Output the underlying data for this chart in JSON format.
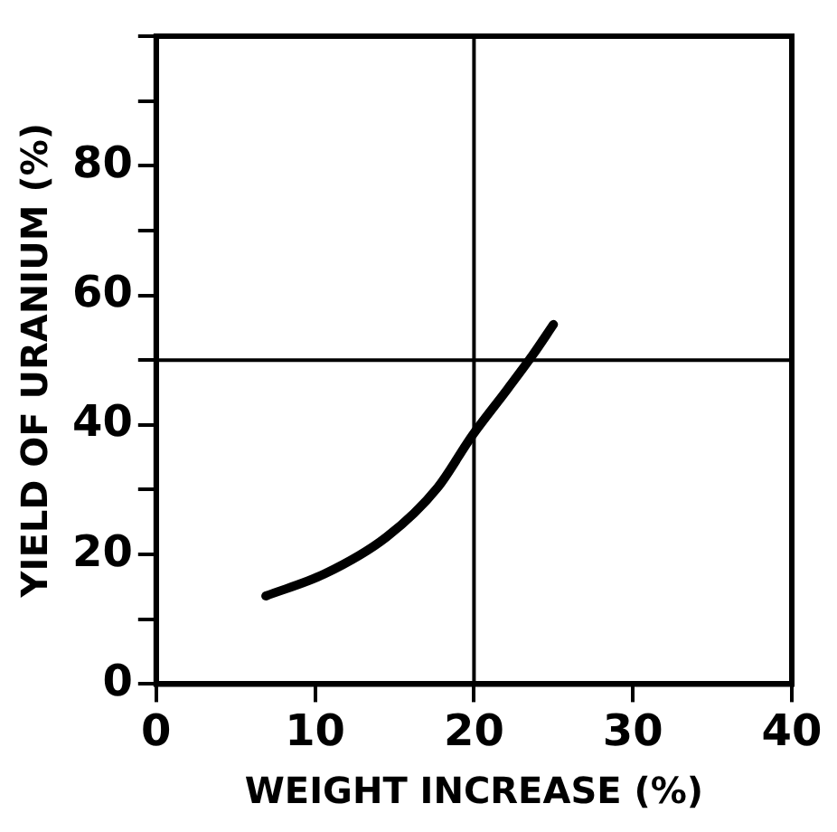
{
  "chart_data": {
    "type": "line",
    "xlabel": "WEIGHT INCREASE (%)",
    "ylabel": "YIELD OF URANIUM (%)",
    "series": [
      {
        "color": "#000000",
        "x": [
          6.9,
          10.6,
          14.5,
          17.7,
          19.9,
          22.1,
          23.7,
          25
        ],
        "values": [
          13.6,
          17,
          22.7,
          30.3,
          38.4,
          45.5,
          50.8,
          55.5
        ]
      }
    ],
    "xlim": [
      0,
      40
    ],
    "xticks": [
      0,
      10,
      20,
      30,
      40
    ],
    "ylim": [
      0,
      100
    ],
    "yticks": [
      0,
      {
        "value": 10,
        "label": null
      },
      20,
      {
        "value": 30,
        "label": null
      },
      40,
      {
        "value": 50,
        "label": null
      },
      60,
      {
        "value": 70,
        "label": null
      },
      80,
      {
        "value": 90,
        "label": null
      },
      {
        "value": 100,
        "label": null
      }
    ],
    "ref_lines": [
      {
        "axis": "x",
        "value": 20,
        "color": "#000000"
      },
      {
        "axis": "y",
        "value": 50,
        "color": "#000000"
      }
    ],
    "grid": false,
    "legend": false,
    "marker": "none",
    "line_style": "solid"
  }
}
